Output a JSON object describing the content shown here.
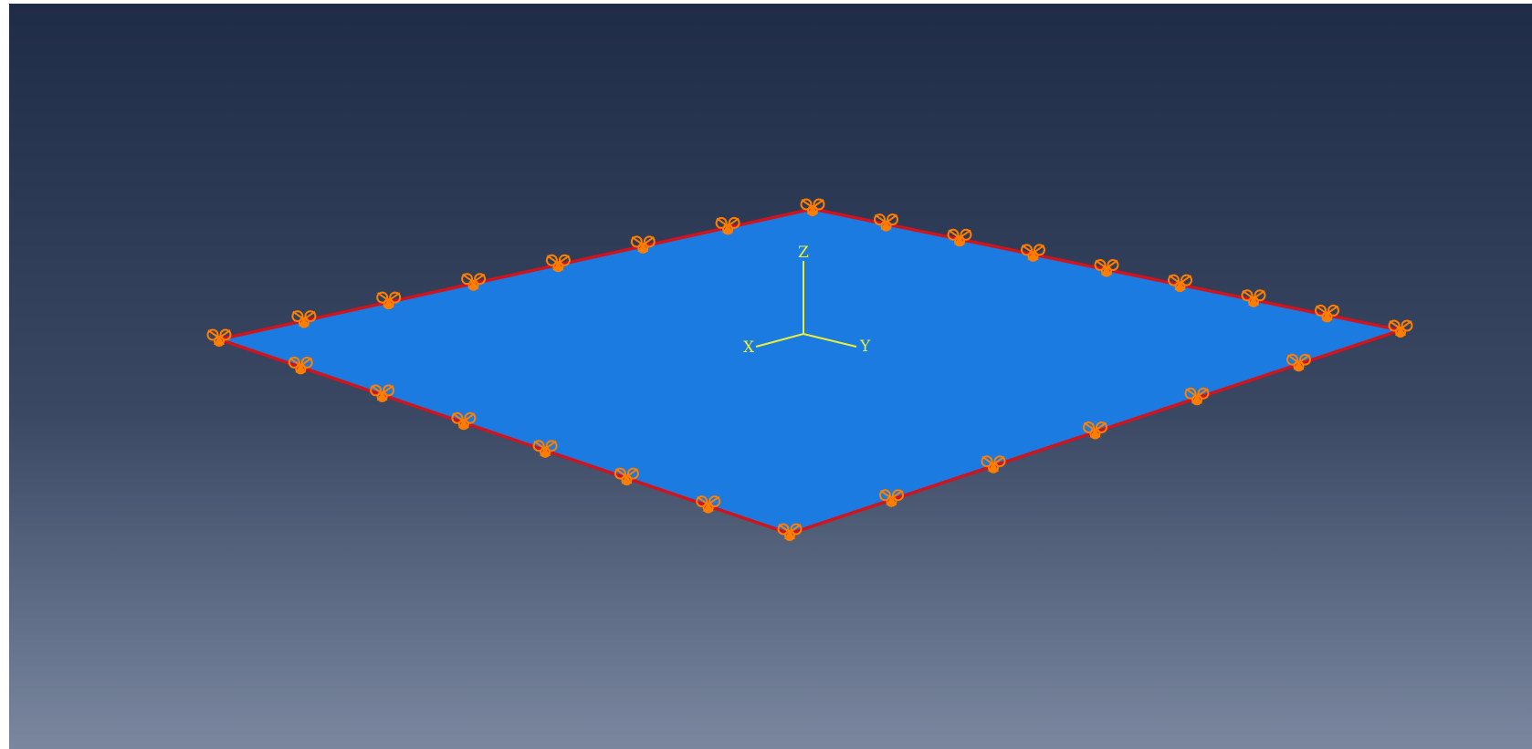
{
  "viewport": {
    "background_top_color": "#1f2c47",
    "background_bottom_color": "#7a879f"
  },
  "plate": {
    "fill_color": "#1b7be0",
    "edge_color": "#d0141e"
  },
  "boundary_conditions": {
    "symbol": "encastre-icon",
    "color": "#ff7e00",
    "count": 28
  },
  "triad": {
    "color": "#e8ee3a",
    "labels": {
      "x": "X",
      "y": "Y",
      "z": "Z"
    }
  }
}
